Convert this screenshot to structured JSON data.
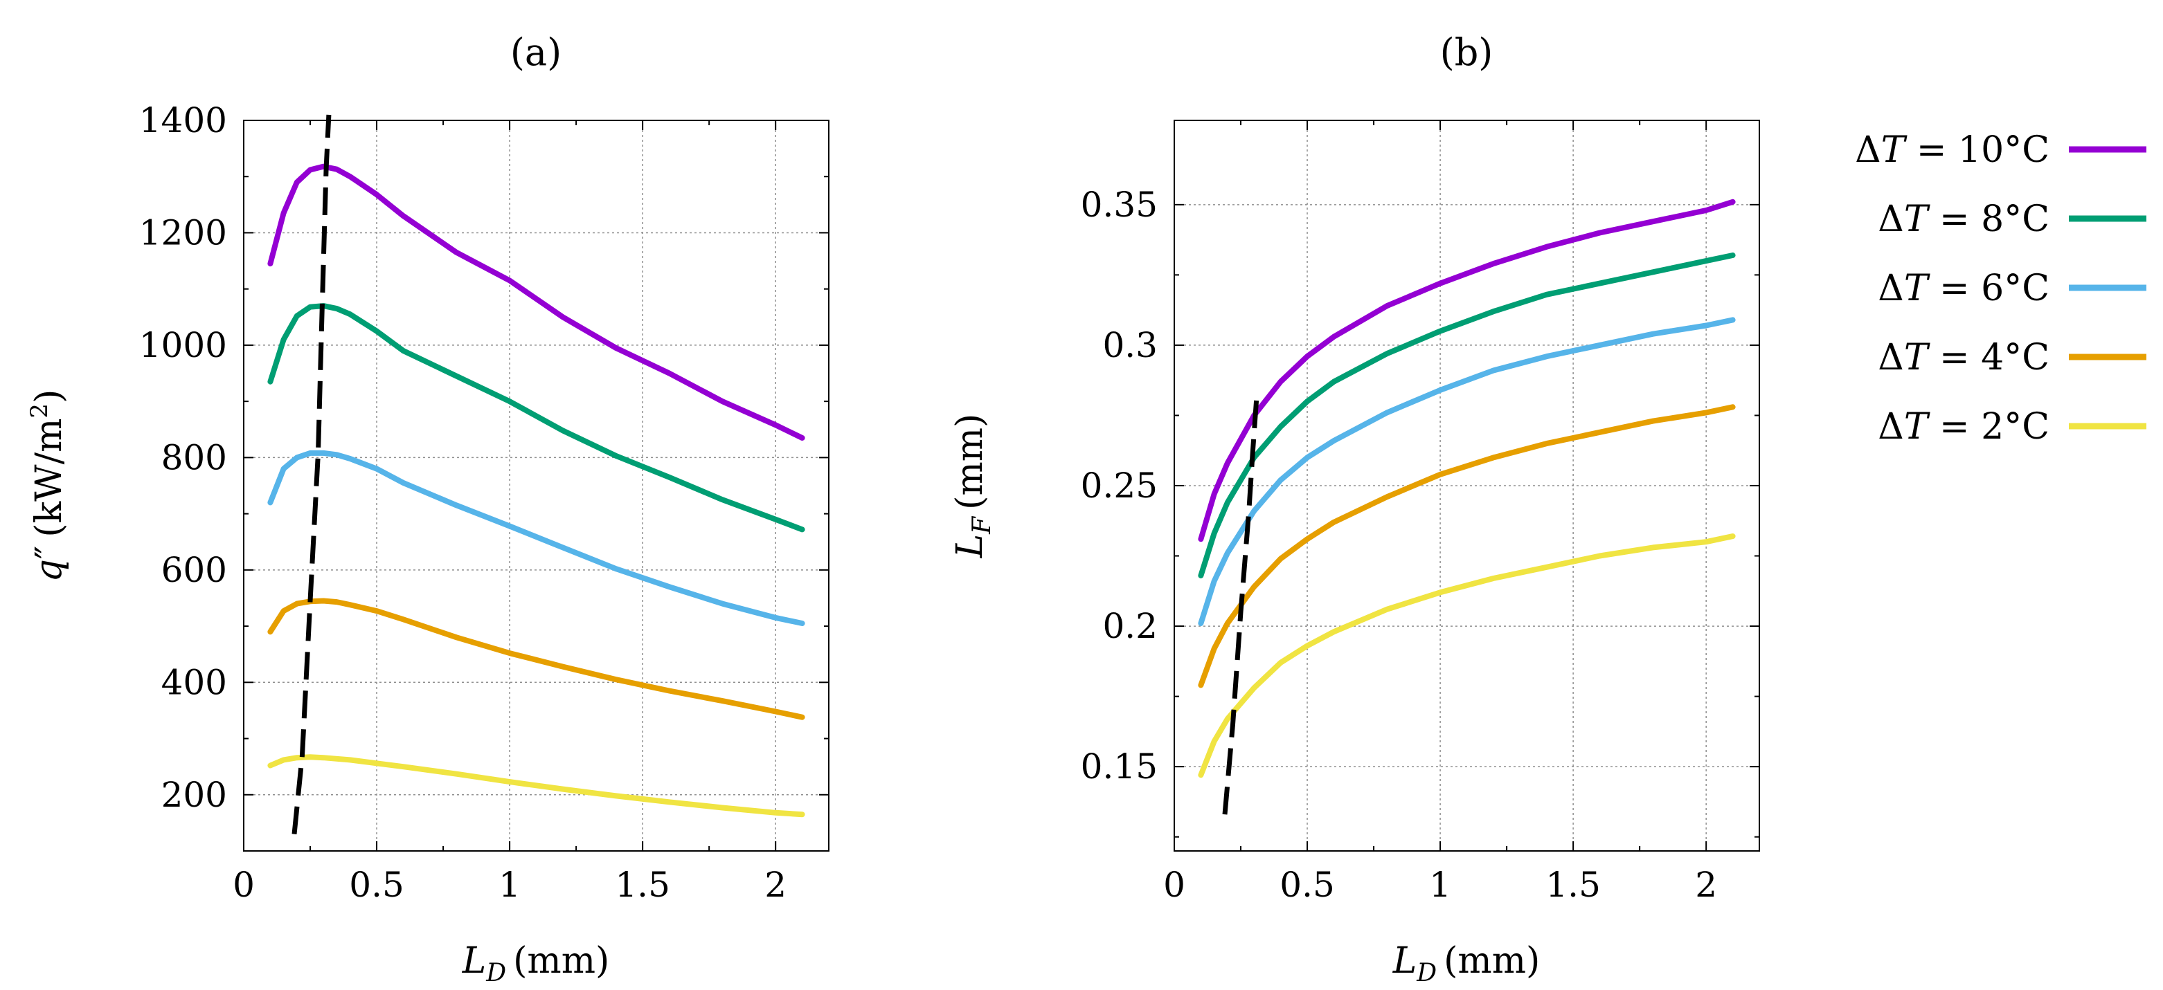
{
  "chart_data": [
    {
      "type": "line",
      "title": "(a)",
      "xlabel": "L_D (mm)",
      "xlabel_main": "L",
      "xlabel_sub": "D",
      "xlabel_unit": "(mm)",
      "ylabel": "q'' (kW/m^2)",
      "ylabel_main": "q",
      "ylabel_prime": "″",
      "ylabel_unit": "(kW/m",
      "ylabel_sup": "2",
      "ylabel_close": ")",
      "xlim": [
        0,
        2.2
      ],
      "ylim": [
        100,
        1400
      ],
      "xticks": [
        0,
        0.5,
        1,
        1.5,
        2
      ],
      "xtick_labels": [
        "0",
        "0.5",
        "1",
        "1.5",
        "2"
      ],
      "yticks": [
        200,
        400,
        600,
        800,
        1000,
        1200,
        1400
      ],
      "ytick_labels": [
        "200",
        "400",
        "600",
        "800",
        "1000",
        "1200",
        "1400"
      ],
      "grid": true,
      "series": [
        {
          "name": "ΔT = 10°C",
          "color": "#9400d3",
          "x": [
            0.1,
            0.15,
            0.2,
            0.25,
            0.3,
            0.35,
            0.4,
            0.5,
            0.6,
            0.8,
            1.0,
            1.2,
            1.4,
            1.6,
            1.8,
            2.0,
            2.1
          ],
          "y": [
            1145,
            1235,
            1290,
            1312,
            1318,
            1313,
            1300,
            1268,
            1230,
            1165,
            1115,
            1050,
            995,
            950,
            900,
            858,
            835
          ]
        },
        {
          "name": "ΔT = 8°C",
          "color": "#009e73",
          "x": [
            0.1,
            0.15,
            0.2,
            0.25,
            0.3,
            0.35,
            0.4,
            0.5,
            0.6,
            0.8,
            1.0,
            1.2,
            1.4,
            1.6,
            1.8,
            2.0,
            2.1
          ],
          "y": [
            935,
            1010,
            1052,
            1068,
            1070,
            1065,
            1055,
            1025,
            990,
            945,
            900,
            848,
            803,
            765,
            725,
            690,
            672
          ]
        },
        {
          "name": "ΔT = 6°C",
          "color": "#56b4e9",
          "x": [
            0.1,
            0.15,
            0.2,
            0.25,
            0.3,
            0.35,
            0.4,
            0.5,
            0.6,
            0.8,
            1.0,
            1.2,
            1.4,
            1.6,
            1.8,
            2.0,
            2.1
          ],
          "y": [
            720,
            780,
            800,
            808,
            808,
            805,
            798,
            780,
            755,
            715,
            678,
            640,
            602,
            570,
            540,
            515,
            505
          ]
        },
        {
          "name": "ΔT = 4°C",
          "color": "#e69f00",
          "x": [
            0.1,
            0.15,
            0.2,
            0.25,
            0.3,
            0.35,
            0.4,
            0.5,
            0.6,
            0.8,
            1.0,
            1.2,
            1.4,
            1.6,
            1.8,
            2.0,
            2.1
          ],
          "y": [
            490,
            527,
            540,
            544,
            545,
            543,
            538,
            527,
            512,
            480,
            452,
            428,
            405,
            385,
            367,
            348,
            338
          ]
        },
        {
          "name": "ΔT = 2°C",
          "color": "#f0e442",
          "x": [
            0.1,
            0.15,
            0.2,
            0.25,
            0.3,
            0.35,
            0.4,
            0.5,
            0.6,
            0.8,
            1.0,
            1.2,
            1.4,
            1.6,
            1.8,
            2.0,
            2.1
          ],
          "y": [
            252,
            262,
            266,
            267,
            266,
            264,
            262,
            256,
            250,
            237,
            223,
            210,
            198,
            187,
            177,
            168,
            165
          ]
        }
      ],
      "optimum_locus": {
        "style": "dashed",
        "color": "#000000",
        "x": [
          0.19,
          0.22,
          0.25,
          0.28,
          0.295,
          0.31,
          0.32
        ],
        "y": [
          130,
          270,
          545,
          808,
          1068,
          1315,
          1410
        ]
      }
    },
    {
      "type": "line",
      "title": "(b)",
      "xlabel": "L_D (mm)",
      "xlabel_main": "L",
      "xlabel_sub": "D",
      "xlabel_unit": "(mm)",
      "ylabel": "L_F (mm)",
      "ylabel_main": "L",
      "ylabel_sub": "F",
      "ylabel_unit": "(mm)",
      "xlim": [
        0,
        2.2
      ],
      "ylim": [
        0.12,
        0.38
      ],
      "xticks": [
        0,
        0.5,
        1,
        1.5,
        2
      ],
      "xtick_labels": [
        "0",
        "0.5",
        "1",
        "1.5",
        "2"
      ],
      "yticks": [
        0.15,
        0.2,
        0.25,
        0.3,
        0.35
      ],
      "ytick_labels": [
        "0.15",
        "0.2",
        "0.25",
        "0.3",
        "0.35"
      ],
      "grid": true,
      "series": [
        {
          "name": "ΔT = 10°C",
          "color": "#9400d3",
          "x": [
            0.1,
            0.15,
            0.2,
            0.3,
            0.4,
            0.5,
            0.6,
            0.8,
            1.0,
            1.2,
            1.4,
            1.6,
            1.8,
            2.0,
            2.1
          ],
          "y": [
            0.231,
            0.247,
            0.258,
            0.275,
            0.287,
            0.296,
            0.303,
            0.314,
            0.322,
            0.329,
            0.335,
            0.34,
            0.344,
            0.348,
            0.351
          ]
        },
        {
          "name": "ΔT = 8°C",
          "color": "#009e73",
          "x": [
            0.1,
            0.15,
            0.2,
            0.3,
            0.4,
            0.5,
            0.6,
            0.8,
            1.0,
            1.2,
            1.4,
            1.6,
            1.8,
            2.0,
            2.1
          ],
          "y": [
            0.218,
            0.233,
            0.244,
            0.26,
            0.271,
            0.28,
            0.287,
            0.297,
            0.305,
            0.312,
            0.318,
            0.322,
            0.326,
            0.33,
            0.332
          ]
        },
        {
          "name": "ΔT = 6°C",
          "color": "#56b4e9",
          "x": [
            0.1,
            0.15,
            0.2,
            0.3,
            0.4,
            0.5,
            0.6,
            0.8,
            1.0,
            1.2,
            1.4,
            1.6,
            1.8,
            2.0,
            2.1
          ],
          "y": [
            0.201,
            0.216,
            0.226,
            0.241,
            0.252,
            0.26,
            0.266,
            0.276,
            0.284,
            0.291,
            0.296,
            0.3,
            0.304,
            0.307,
            0.309
          ]
        },
        {
          "name": "ΔT = 4°C",
          "color": "#e69f00",
          "x": [
            0.1,
            0.15,
            0.2,
            0.3,
            0.4,
            0.5,
            0.6,
            0.8,
            1.0,
            1.2,
            1.4,
            1.6,
            1.8,
            2.0,
            2.1
          ],
          "y": [
            0.179,
            0.192,
            0.201,
            0.214,
            0.224,
            0.231,
            0.237,
            0.246,
            0.254,
            0.26,
            0.265,
            0.269,
            0.273,
            0.276,
            0.278
          ]
        },
        {
          "name": "ΔT = 2°C",
          "color": "#f0e442",
          "x": [
            0.1,
            0.15,
            0.2,
            0.3,
            0.4,
            0.5,
            0.6,
            0.8,
            1.0,
            1.2,
            1.4,
            1.6,
            1.8,
            2.0,
            2.1
          ],
          "y": [
            0.147,
            0.159,
            0.167,
            0.178,
            0.187,
            0.193,
            0.198,
            0.206,
            0.212,
            0.217,
            0.221,
            0.225,
            0.228,
            0.23,
            0.232
          ]
        }
      ],
      "optimum_locus": {
        "style": "dashed",
        "color": "#000000",
        "x": [
          0.19,
          0.22,
          0.25,
          0.28,
          0.295,
          0.31
        ],
        "y": [
          0.133,
          0.165,
          0.205,
          0.24,
          0.262,
          0.282
        ]
      }
    }
  ],
  "legend": {
    "placement": "right",
    "entries": [
      {
        "prefix": "Δ",
        "var": "T",
        "rest": " = 10°C",
        "color": "#9400d3"
      },
      {
        "prefix": "Δ",
        "var": "T",
        "rest": " = 8°C",
        "color": "#009e73"
      },
      {
        "prefix": "Δ",
        "var": "T",
        "rest": " = 6°C",
        "color": "#56b4e9"
      },
      {
        "prefix": "Δ",
        "var": "T",
        "rest": " = 4°C",
        "color": "#e69f00"
      },
      {
        "prefix": "Δ",
        "var": "T",
        "rest": " = 2°C",
        "color": "#f0e442"
      }
    ]
  }
}
